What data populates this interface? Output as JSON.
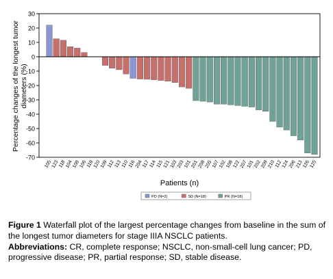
{
  "chart_data": {
    "type": "bar",
    "ylabel": "Percentage changes of the longest tumor diameters (%)",
    "ylabel_lines": [
      "Percentage changes of the longest tumor",
      "diameters (%)"
    ],
    "xlabel": "Patients (n)",
    "ylim": [
      -70,
      30
    ],
    "yticks": [
      30,
      20,
      10,
      0,
      -10,
      -20,
      -30,
      -40,
      -50,
      -60,
      -70
    ],
    "grid": false,
    "legend_position": "bottom",
    "legend": [
      {
        "key": "PD",
        "label": "PD (N=2)",
        "color": "#8b97d1"
      },
      {
        "key": "SD",
        "label": "SD (N=18)",
        "color": "#c86f6c"
      },
      {
        "key": "PR",
        "label": "PR (N=18)",
        "color": "#6fa398"
      }
    ],
    "bars": [
      {
        "label": "105",
        "value": 22,
        "group": "PD"
      },
      {
        "label": "123",
        "value": 12.5,
        "group": "SD"
      },
      {
        "label": "118",
        "value": 11.5,
        "group": "SD"
      },
      {
        "label": "104",
        "value": 7,
        "group": "SD"
      },
      {
        "label": "108",
        "value": 6,
        "group": "SD"
      },
      {
        "label": "106",
        "value": 3,
        "group": "SD"
      },
      {
        "label": "119",
        "value": 0,
        "group": "SD"
      },
      {
        "label": "120",
        "value": 0,
        "group": "SD"
      },
      {
        "label": "109",
        "value": -6,
        "group": "SD"
      },
      {
        "label": "112",
        "value": -8,
        "group": "SD"
      },
      {
        "label": "113",
        "value": -9,
        "group": "SD"
      },
      {
        "label": "110",
        "value": -12,
        "group": "SD"
      },
      {
        "label": "116",
        "value": -15,
        "group": "PD"
      },
      {
        "label": "204",
        "value": -15.5,
        "group": "SD"
      },
      {
        "label": "117",
        "value": -15.7,
        "group": "SD"
      },
      {
        "label": "114",
        "value": -16,
        "group": "SD"
      },
      {
        "label": "115",
        "value": -16.5,
        "group": "SD"
      },
      {
        "label": "121",
        "value": -17,
        "group": "SD"
      },
      {
        "label": "103",
        "value": -18,
        "group": "SD"
      },
      {
        "label": "203",
        "value": -21,
        "group": "SD"
      },
      {
        "label": "101",
        "value": -22,
        "group": "SD"
      },
      {
        "label": "201",
        "value": -30.5,
        "group": "PR"
      },
      {
        "label": "208",
        "value": -31,
        "group": "PR"
      },
      {
        "label": "205",
        "value": -31.5,
        "group": "PR"
      },
      {
        "label": "107",
        "value": -33,
        "group": "PR"
      },
      {
        "label": "102",
        "value": -33,
        "group": "PR"
      },
      {
        "label": "108",
        "value": -33.5,
        "group": "PR"
      },
      {
        "label": "122",
        "value": -34,
        "group": "PR"
      },
      {
        "label": "207",
        "value": -34.5,
        "group": "PR"
      },
      {
        "label": "101",
        "value": -35,
        "group": "PR"
      },
      {
        "label": "202",
        "value": -37,
        "group": "PR"
      },
      {
        "label": "209",
        "value": -38,
        "group": "PR"
      },
      {
        "label": "210",
        "value": -45,
        "group": "PR"
      },
      {
        "label": "112",
        "value": -49,
        "group": "PR"
      },
      {
        "label": "124",
        "value": -51,
        "group": "PR"
      },
      {
        "label": "206",
        "value": -55,
        "group": "PR"
      },
      {
        "label": "213",
        "value": -58,
        "group": "PR"
      },
      {
        "label": "126",
        "value": -67,
        "group": "PR"
      },
      {
        "label": "125",
        "value": -68,
        "group": "PR"
      }
    ]
  },
  "caption": {
    "figure_label": "Figure 1",
    "figure_text": "Waterfall plot of the largest percentage changes from baseline in the sum of the longest tumor diameters for stage IIIA NSCLC patients.",
    "abbreviations_label": "Abbreviations:",
    "abbreviations_text": "CR, complete response;  NSCLC, non-small-cell lung cancer; PD, progressive disease; PR, partial response; SD, stable disease."
  }
}
